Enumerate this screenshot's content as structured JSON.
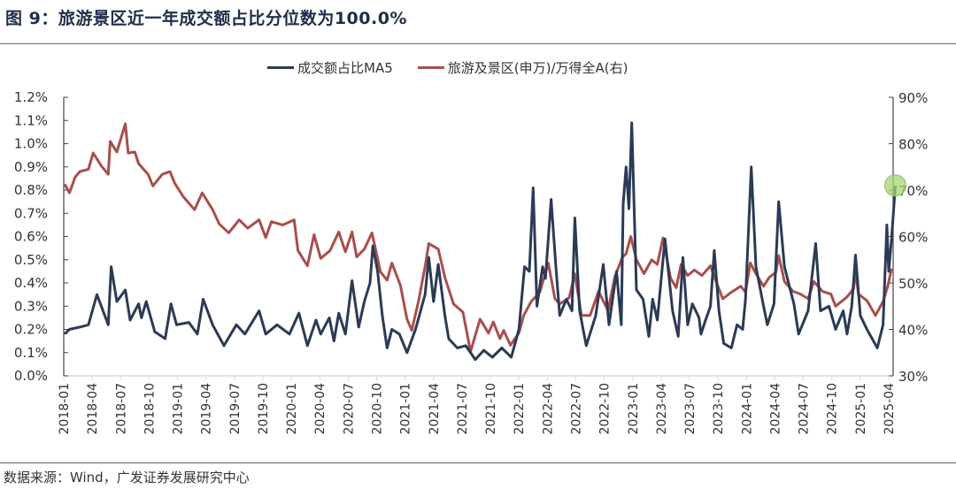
{
  "title": "图 9：旅游景区近一年成交额占比分位数为100.0%",
  "source": "数据来源：Wind，广发证券发展研究中心",
  "colors": {
    "ma5": "#2b3a55",
    "ratio": "#a84f4b",
    "highlight": "#a6d476"
  },
  "chart_data": {
    "type": "line",
    "legend_placement": "top-center",
    "x_start": "2018-01",
    "x_unit": "months since 2018-01",
    "x_ticks": [
      "2018-01",
      "2018-04",
      "2018-07",
      "2018-10",
      "2019-01",
      "2019-04",
      "2019-07",
      "2019-10",
      "2020-01",
      "2020-04",
      "2020-07",
      "2020-10",
      "2021-01",
      "2021-04",
      "2021-07",
      "2021-10",
      "2022-01",
      "2022-04",
      "2022-07",
      "2022-10",
      "2023-01",
      "2023-04",
      "2023-07",
      "2023-10",
      "2024-01",
      "2024-04",
      "2024-07",
      "2024-10",
      "2025-01",
      "2025-04"
    ],
    "y_left": {
      "min": 0,
      "max": 1.2,
      "step": 0.1,
      "ticks": [
        "0.0%",
        "0.1%",
        "0.2%",
        "0.3%",
        "0.4%",
        "0.5%",
        "0.6%",
        "0.7%",
        "0.8%",
        "0.9%",
        "1.0%",
        "1.1%",
        "1.2%"
      ]
    },
    "y_right": {
      "min": 30,
      "max": 90,
      "step": 10,
      "ticks": [
        "30%",
        "40%",
        "50%",
        "60%",
        "70%",
        "80%",
        "90%"
      ]
    },
    "series": [
      {
        "name": "成交额占比MA5",
        "axis": "left",
        "unit": "%",
        "points": [
          [
            0.1,
            0.18
          ],
          [
            0.6,
            0.2
          ],
          [
            1.7,
            0.21
          ],
          [
            2.6,
            0.22
          ],
          [
            3.5,
            0.35
          ],
          [
            4.7,
            0.22
          ],
          [
            5.0,
            0.47
          ],
          [
            5.6,
            0.32
          ],
          [
            6.5,
            0.37
          ],
          [
            7.0,
            0.24
          ],
          [
            7.9,
            0.31
          ],
          [
            8.2,
            0.25
          ],
          [
            8.7,
            0.32
          ],
          [
            9.6,
            0.19
          ],
          [
            10.7,
            0.16
          ],
          [
            11.3,
            0.31
          ],
          [
            11.9,
            0.22
          ],
          [
            13.2,
            0.23
          ],
          [
            14.1,
            0.18
          ],
          [
            14.7,
            0.33
          ],
          [
            15.7,
            0.22
          ],
          [
            16.9,
            0.13
          ],
          [
            18.2,
            0.22
          ],
          [
            19.1,
            0.18
          ],
          [
            20.6,
            0.28
          ],
          [
            21.3,
            0.18
          ],
          [
            22.5,
            0.22
          ],
          [
            23.8,
            0.18
          ],
          [
            24.8,
            0.27
          ],
          [
            25.7,
            0.13
          ],
          [
            26.6,
            0.24
          ],
          [
            27.1,
            0.18
          ],
          [
            28.0,
            0.25
          ],
          [
            28.5,
            0.15
          ],
          [
            29.0,
            0.27
          ],
          [
            29.7,
            0.18
          ],
          [
            30.4,
            0.41
          ],
          [
            31.1,
            0.21
          ],
          [
            31.7,
            0.32
          ],
          [
            32.3,
            0.4
          ],
          [
            32.6,
            0.56
          ],
          [
            33.1,
            0.45
          ],
          [
            33.6,
            0.26
          ],
          [
            34.1,
            0.12
          ],
          [
            34.6,
            0.2
          ],
          [
            35.4,
            0.18
          ],
          [
            36.2,
            0.1
          ],
          [
            37.1,
            0.2
          ],
          [
            38.1,
            0.35
          ],
          [
            38.5,
            0.51
          ],
          [
            39.0,
            0.32
          ],
          [
            39.5,
            0.48
          ],
          [
            40.2,
            0.26
          ],
          [
            40.6,
            0.16
          ],
          [
            41.5,
            0.12
          ],
          [
            42.4,
            0.13
          ],
          [
            43.4,
            0.07
          ],
          [
            44.3,
            0.11
          ],
          [
            45.2,
            0.08
          ],
          [
            46.2,
            0.12
          ],
          [
            47.2,
            0.08
          ],
          [
            48.0,
            0.2
          ],
          [
            48.6,
            0.47
          ],
          [
            49.1,
            0.45
          ],
          [
            49.5,
            0.81
          ],
          [
            49.9,
            0.3
          ],
          [
            50.5,
            0.47
          ],
          [
            50.8,
            0.42
          ],
          [
            51.4,
            0.76
          ],
          [
            51.9,
            0.47
          ],
          [
            52.3,
            0.26
          ],
          [
            53.0,
            0.33
          ],
          [
            53.6,
            0.28
          ],
          [
            53.9,
            0.68
          ],
          [
            54.4,
            0.28
          ],
          [
            55.1,
            0.13
          ],
          [
            56.1,
            0.26
          ],
          [
            56.9,
            0.48
          ],
          [
            57.5,
            0.22
          ],
          [
            58.3,
            0.45
          ],
          [
            58.8,
            0.22
          ],
          [
            59.0,
            0.74
          ],
          [
            59.3,
            0.9
          ],
          [
            59.6,
            0.72
          ],
          [
            59.9,
            1.09
          ],
          [
            60.4,
            0.37
          ],
          [
            61.1,
            0.33
          ],
          [
            61.7,
            0.17
          ],
          [
            62.1,
            0.33
          ],
          [
            62.6,
            0.24
          ],
          [
            63.4,
            0.59
          ],
          [
            64.2,
            0.28
          ],
          [
            64.8,
            0.17
          ],
          [
            65.3,
            0.51
          ],
          [
            65.8,
            0.22
          ],
          [
            66.3,
            0.31
          ],
          [
            67.0,
            0.25
          ],
          [
            67.2,
            0.18
          ],
          [
            67.6,
            0.23
          ],
          [
            68.2,
            0.3
          ],
          [
            68.6,
            0.54
          ],
          [
            69.1,
            0.28
          ],
          [
            69.6,
            0.14
          ],
          [
            70.4,
            0.12
          ],
          [
            71.0,
            0.22
          ],
          [
            71.6,
            0.2
          ],
          [
            71.9,
            0.33
          ],
          [
            72.5,
            0.9
          ],
          [
            73.0,
            0.47
          ],
          [
            73.8,
            0.3
          ],
          [
            74.2,
            0.22
          ],
          [
            74.9,
            0.31
          ],
          [
            75.4,
            0.75
          ],
          [
            76.0,
            0.47
          ],
          [
            76.5,
            0.39
          ],
          [
            77.0,
            0.31
          ],
          [
            77.5,
            0.18
          ],
          [
            78.5,
            0.28
          ],
          [
            79.3,
            0.57
          ],
          [
            79.8,
            0.28
          ],
          [
            80.7,
            0.3
          ],
          [
            81.4,
            0.2
          ],
          [
            82.2,
            0.28
          ],
          [
            82.6,
            0.18
          ],
          [
            83.1,
            0.3
          ],
          [
            83.5,
            0.52
          ],
          [
            84.0,
            0.26
          ],
          [
            84.7,
            0.2
          ],
          [
            85.8,
            0.12
          ],
          [
            86.4,
            0.22
          ],
          [
            86.8,
            0.65
          ],
          [
            87.0,
            0.45
          ],
          [
            87.3,
            0.59
          ],
          [
            87.7,
            0.82
          ]
        ]
      },
      {
        "name": "旅游及景区(申万)/万得全A(右)",
        "axis": "right",
        "unit": "%",
        "points": [
          [
            0.1,
            71.3
          ],
          [
            0.6,
            69.4
          ],
          [
            1.2,
            72.8
          ],
          [
            1.7,
            74
          ],
          [
            2.6,
            74.5
          ],
          [
            3.1,
            78
          ],
          [
            4.0,
            75.1
          ],
          [
            4.7,
            73.4
          ],
          [
            4.9,
            80.5
          ],
          [
            5.6,
            78.2
          ],
          [
            6.5,
            84.3
          ],
          [
            6.8,
            78
          ],
          [
            7.5,
            78.2
          ],
          [
            7.9,
            75.7
          ],
          [
            8.9,
            73.4
          ],
          [
            9.4,
            70.9
          ],
          [
            10.4,
            73.4
          ],
          [
            11.2,
            74
          ],
          [
            11.7,
            71.5
          ],
          [
            12.6,
            68.6
          ],
          [
            13.8,
            65.8
          ],
          [
            14.6,
            69.4
          ],
          [
            15.7,
            65.8
          ],
          [
            16.4,
            62.7
          ],
          [
            17.4,
            60.8
          ],
          [
            18.5,
            63.6
          ],
          [
            19.4,
            61.8
          ],
          [
            20.6,
            63.6
          ],
          [
            21.3,
            59.8
          ],
          [
            21.9,
            63.2
          ],
          [
            23.1,
            62.5
          ],
          [
            24.3,
            63.6
          ],
          [
            24.7,
            57
          ],
          [
            25.7,
            53.7
          ],
          [
            26.4,
            60.4
          ],
          [
            27.1,
            55.3
          ],
          [
            28.1,
            57
          ],
          [
            29.0,
            61
          ],
          [
            29.7,
            56.7
          ],
          [
            30.4,
            61
          ],
          [
            30.9,
            55.6
          ],
          [
            31.7,
            57.3
          ],
          [
            32.5,
            60.8
          ],
          [
            33.4,
            52.4
          ],
          [
            34.1,
            50.6
          ],
          [
            34.6,
            54.3
          ],
          [
            35.5,
            49.5
          ],
          [
            36.2,
            42.2
          ],
          [
            36.7,
            39.8
          ],
          [
            37.4,
            46
          ],
          [
            38.1,
            53.5
          ],
          [
            38.5,
            58.5
          ],
          [
            39.5,
            57.3
          ],
          [
            40.2,
            51.2
          ],
          [
            41.1,
            45.5
          ],
          [
            42.1,
            43.7
          ],
          [
            42.9,
            35.2
          ],
          [
            43.9,
            42.2
          ],
          [
            44.8,
            39.2
          ],
          [
            45.3,
            41.6
          ],
          [
            46.0,
            38
          ],
          [
            46.4,
            39.8
          ],
          [
            47.1,
            36.6
          ],
          [
            48.0,
            39.2
          ],
          [
            48.5,
            43
          ],
          [
            49.3,
            46
          ],
          [
            50.2,
            48
          ],
          [
            51.1,
            54.3
          ],
          [
            51.8,
            46.6
          ],
          [
            52.3,
            45.5
          ],
          [
            53.3,
            46.8
          ],
          [
            53.9,
            52
          ],
          [
            54.6,
            43
          ],
          [
            55.5,
            43
          ],
          [
            56.4,
            48.2
          ],
          [
            57.4,
            44
          ],
          [
            58.1,
            51.2
          ],
          [
            58.9,
            55.5
          ],
          [
            59.3,
            56.3
          ],
          [
            59.8,
            60
          ],
          [
            60.4,
            55
          ],
          [
            61.2,
            52
          ],
          [
            62.0,
            55
          ],
          [
            62.6,
            54
          ],
          [
            63.2,
            59.7
          ],
          [
            64.0,
            51
          ],
          [
            64.6,
            49
          ],
          [
            65.1,
            54
          ],
          [
            65.8,
            51.6
          ],
          [
            66.5,
            52.8
          ],
          [
            67.3,
            51.6
          ],
          [
            68.2,
            53.7
          ],
          [
            68.8,
            50.3
          ],
          [
            69.5,
            46.6
          ],
          [
            70.4,
            48
          ],
          [
            71.4,
            49.3
          ],
          [
            71.9,
            48
          ],
          [
            72.4,
            54.3
          ],
          [
            73.0,
            52
          ],
          [
            73.8,
            49.3
          ],
          [
            74.4,
            51.2
          ],
          [
            75.1,
            52.3
          ],
          [
            75.4,
            55.9
          ],
          [
            76.0,
            50.3
          ],
          [
            76.9,
            48.2
          ],
          [
            77.7,
            47.6
          ],
          [
            78.5,
            46.6
          ],
          [
            79.1,
            50.3
          ],
          [
            80.0,
            48.2
          ],
          [
            80.9,
            47.6
          ],
          [
            81.4,
            45
          ],
          [
            82.6,
            47
          ],
          [
            83.3,
            48.8
          ],
          [
            83.5,
            53
          ],
          [
            83.8,
            47.6
          ],
          [
            84.7,
            46.2
          ],
          [
            85.6,
            43
          ],
          [
            86.4,
            46
          ],
          [
            86.9,
            49.3
          ],
          [
            87.3,
            53.1
          ]
        ]
      }
    ],
    "highlight": {
      "series": "成交额占比MA5",
      "point": [
        87.7,
        0.82
      ]
    }
  }
}
